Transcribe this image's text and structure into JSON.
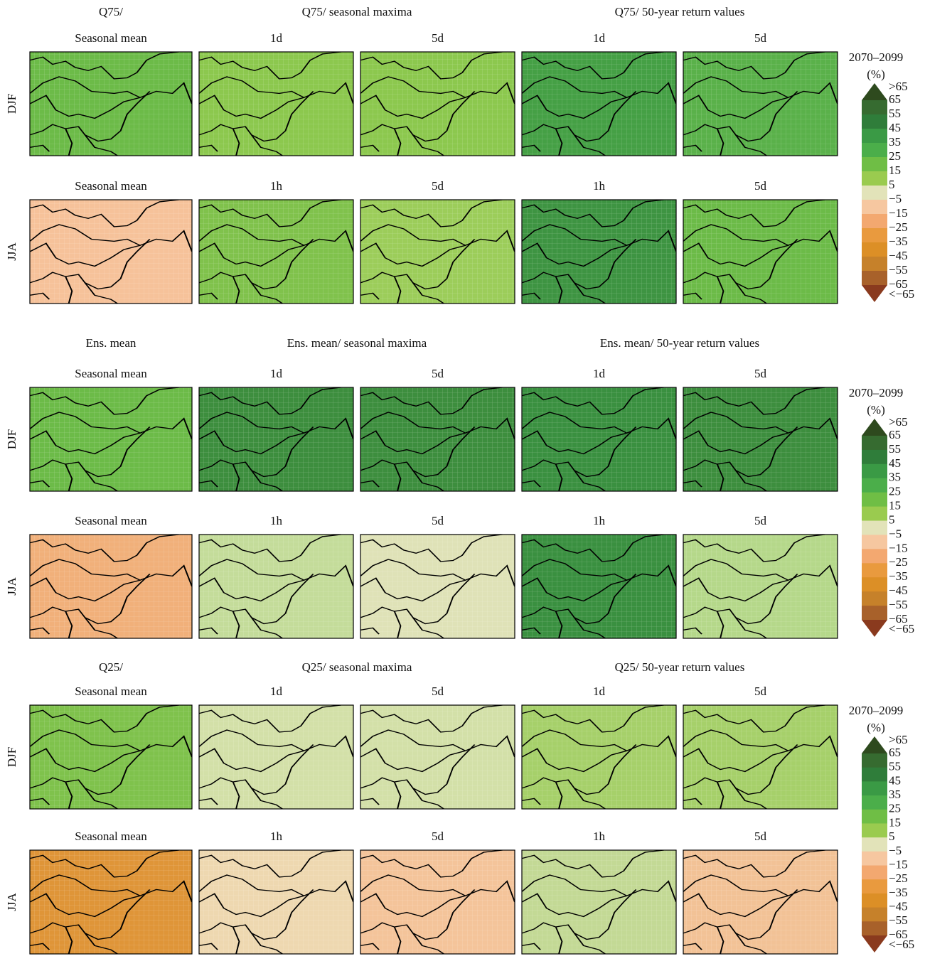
{
  "figure": {
    "blocks": [
      {
        "group_titles": [
          "Q75/",
          "Q75/ seasonal maxima",
          "Q75/ 50-year return values"
        ],
        "rows": [
          {
            "label": "DJF",
            "panels": [
              {
                "title": "Seasonal mean",
                "color": "#6cbb48"
              },
              {
                "title": "1d",
                "color": "#8cc84e"
              },
              {
                "title": "5d",
                "color": "#8cc84e"
              },
              {
                "title": "1d",
                "color": "#45a045"
              },
              {
                "title": "5d",
                "color": "#5ab14a"
              }
            ]
          },
          {
            "label": "JJA",
            "panels": [
              {
                "title": "Seasonal mean",
                "color": "#f6c29a"
              },
              {
                "title": "1h",
                "color": "#80c24c"
              },
              {
                "title": "5d",
                "color": "#9ccd5a"
              },
              {
                "title": "1h",
                "color": "#3e9442"
              },
              {
                "title": "5d",
                "color": "#6cbb48"
              }
            ]
          }
        ]
      },
      {
        "group_titles": [
          "Ens. mean",
          "Ens. mean/ seasonal maxima",
          "Ens. mean/ 50-year return values"
        ],
        "rows": [
          {
            "label": "DJF",
            "panels": [
              {
                "title": "Seasonal mean",
                "color": "#6cbb48"
              },
              {
                "title": "1d",
                "color": "#3d8e3e"
              },
              {
                "title": "5d",
                "color": "#3d8e3e"
              },
              {
                "title": "1d",
                "color": "#3a9040"
              },
              {
                "title": "5d",
                "color": "#3d8e3e"
              }
            ]
          },
          {
            "label": "JJA",
            "panels": [
              {
                "title": "Seasonal mean",
                "color": "#f1b07a"
              },
              {
                "title": "1h",
                "color": "#c4dc9a"
              },
              {
                "title": "5d",
                "color": "#dfe2b7"
              },
              {
                "title": "1h",
                "color": "#3a9040"
              },
              {
                "title": "5d",
                "color": "#b5d88a"
              }
            ]
          }
        ]
      },
      {
        "group_titles": [
          "Q25/",
          "Q25/ seasonal maxima",
          "Q25/ 50-year return values"
        ],
        "rows": [
          {
            "label": "DJF",
            "panels": [
              {
                "title": "Seasonal mean",
                "color": "#7fc24c"
              },
              {
                "title": "1d",
                "color": "#d3e0a8"
              },
              {
                "title": "5d",
                "color": "#d3e0a8"
              },
              {
                "title": "1d",
                "color": "#a6d06a"
              },
              {
                "title": "5d",
                "color": "#a6d06a"
              }
            ]
          },
          {
            "label": "JJA",
            "panels": [
              {
                "title": "Seasonal mean",
                "color": "#df9538"
              },
              {
                "title": "1h",
                "color": "#eed8b0"
              },
              {
                "title": "5d",
                "color": "#f4c49a"
              },
              {
                "title": "1h",
                "color": "#c3d995"
              },
              {
                "title": "5d",
                "color": "#f2c296"
              }
            ]
          }
        ]
      }
    ],
    "colorbar": {
      "title": "2070–2099",
      "unit": "(%)",
      "labels": [
        ">65",
        "65",
        "55",
        "45",
        "35",
        "25",
        "15",
        "5",
        "−5",
        "−15",
        "−25",
        "−35",
        "−45",
        "−55",
        "−65",
        "<−65"
      ],
      "colors": [
        "#2e4a1e",
        "#366b30",
        "#2f7d3a",
        "#3a9a45",
        "#4bae4a",
        "#6fbe45",
        "#9acb4f",
        "#e2e3b9",
        "#f6c7a0",
        "#f3a870",
        "#e99a3e",
        "#dc8f26",
        "#c6812a",
        "#a8612a",
        "#8a3a1e"
      ]
    }
  }
}
